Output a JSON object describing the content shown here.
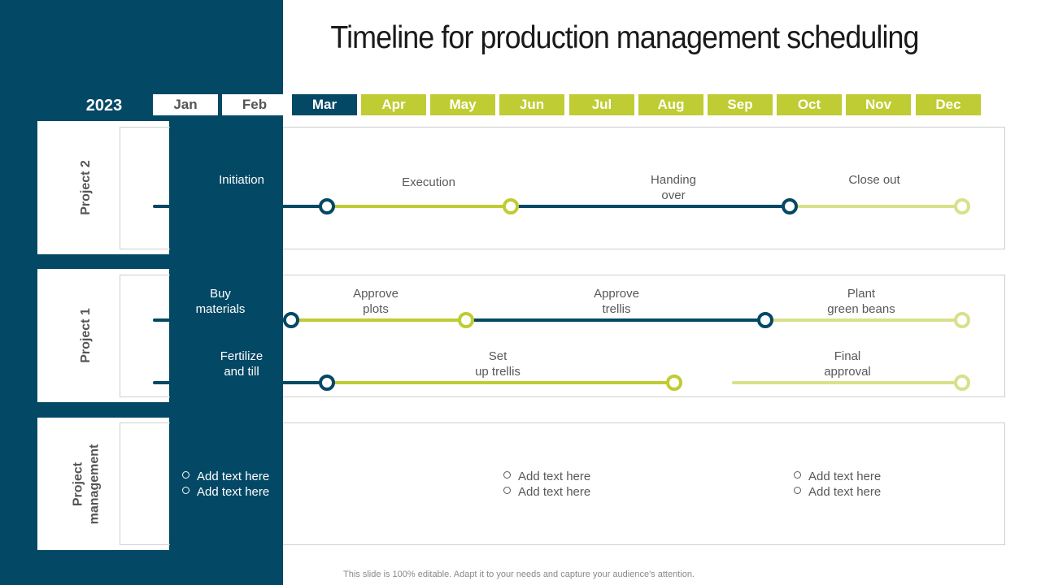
{
  "title": "Timeline for production management scheduling",
  "year": "2023",
  "months": [
    "Jan",
    "Feb",
    "Mar",
    "Apr",
    "May",
    "Jun",
    "Jul",
    "Aug",
    "Sep",
    "Oct",
    "Nov",
    "Dec"
  ],
  "current_month": "Mar",
  "colors": {
    "teal": "#034865",
    "lime": "#bfcc33",
    "light_lime": "#d8e08a"
  },
  "rows": {
    "project2": {
      "label": "Project 2",
      "milestones": [
        "Initiation",
        "Execution",
        "Handing\nover",
        "Close out"
      ]
    },
    "project1": {
      "label": "Project 1",
      "track1": [
        "Buy\nmaterials",
        "Approve\nplots",
        "Approve\ntrellis",
        "Plant\ngreen beans"
      ],
      "track2": [
        "Fertilize\nand till",
        "Set\nup trellis",
        "Final\napproval"
      ]
    },
    "pm": {
      "label": "Project\nmanagement",
      "groups": [
        [
          "Add text here",
          "Add text here"
        ],
        [
          "Add text here",
          "Add text here"
        ],
        [
          "Add text here",
          "Add text here"
        ]
      ]
    }
  },
  "footer": "This slide is 100% editable. Adapt it to your needs and capture your audience's attention."
}
